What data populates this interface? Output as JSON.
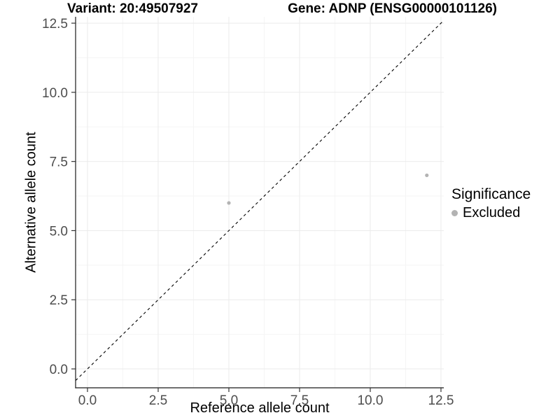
{
  "chart_data": {
    "type": "scatter",
    "title_variant": "Variant: 20:49507927",
    "title_gene": "Gene: ADNP (ENSG00000101126)",
    "xlabel": "Reference allele count",
    "ylabel": "Alternative allele count",
    "x_ticks": [
      0.0,
      2.5,
      5.0,
      7.5,
      10.0,
      12.5
    ],
    "x_tick_labels": [
      "0.0",
      "2.5",
      "5.0",
      "7.5",
      "10.0",
      "12.5"
    ],
    "y_ticks": [
      0.0,
      2.5,
      5.0,
      7.5,
      10.0,
      12.5
    ],
    "y_tick_labels": [
      "0.0",
      "2.5",
      "5.0",
      "7.5",
      "10.0",
      "12.5"
    ],
    "minor_ticks": [
      1.25,
      3.75,
      6.25,
      8.75,
      11.25
    ],
    "xlim": [
      -0.42,
      12.6
    ],
    "ylim": [
      -0.683,
      12.73
    ],
    "grid": true,
    "legend_position": "right",
    "series": [
      {
        "name": "Excluded",
        "color": "#b3b3b3",
        "points": [
          {
            "x": 5,
            "y": 6
          },
          {
            "x": 12,
            "y": 7
          }
        ]
      }
    ],
    "identity_line": {
      "type": "y=x",
      "style": "dashed",
      "color": "#000000"
    },
    "legend": {
      "title": "Significance",
      "items": [
        {
          "label": "Excluded",
          "color": "#b3b3b3"
        }
      ]
    },
    "colors": {
      "background": "#ffffff",
      "grid_major": "#ebebeb",
      "grid_minor": "#f5f5f5",
      "axis_line": "#1a1a1a",
      "tick_mark": "#333333",
      "tick_label": "#4d4d4d",
      "point": "#b3b3b3"
    }
  }
}
